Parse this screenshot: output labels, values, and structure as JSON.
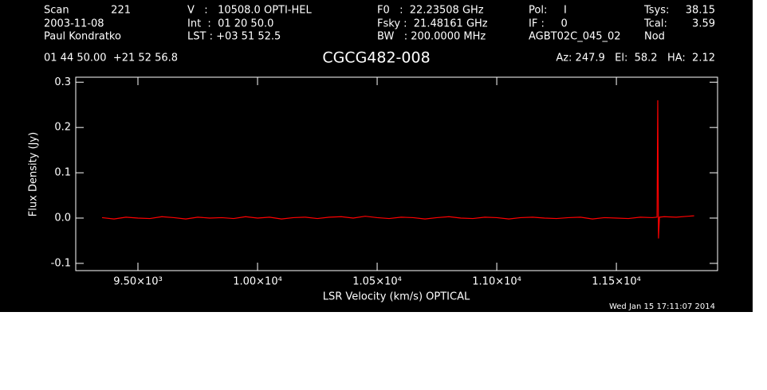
{
  "chart_data": {
    "type": "line",
    "title": "CGCG482-008",
    "header": [
      "Scan",
      "221",
      "2003-11-08",
      "Paul Kondratko",
      "V   :   10508.0 OPTI-HEL",
      "Int  :  01 20 50.0",
      "LST : +03 51 52.5",
      "F0   :  22.23508 GHz",
      "Fsky :  21.48161 GHz",
      "BW   : 200.0000 MHz",
      "Pol:     I",
      "IF :     0",
      "AGBT02C_045_02",
      "Tsys:",
      "38.15",
      "Tcal:",
      "3.59",
      "Nod",
      "01 44 50.00  +21 52 56.8",
      "Az: 247.9   El:  58.2   HA:  2.12"
    ],
    "xlabel": "LSR Velocity (km/s) OPTICAL",
    "ylabel": "Flux Density (Jy)",
    "timestamp": "Wed Jan 15 17:11:07 2014",
    "xlim": [
      9240,
      11923
    ],
    "ylim": [
      -0.116,
      0.311
    ],
    "xticks": [
      {
        "value": 9500,
        "label": "9.50×10³"
      },
      {
        "value": 10000,
        "label": "1.00×10⁴"
      },
      {
        "value": 10500,
        "label": "1.05×10⁴"
      },
      {
        "value": 11000,
        "label": "1.10×10⁴"
      },
      {
        "value": 11500,
        "label": "1.15×10⁴"
      }
    ],
    "yticks": [
      -0.1,
      {
        "value": 0,
        "label": "0.0"
      },
      0.1,
      0.2,
      0.3
    ],
    "series": [
      {
        "color": "#ff0000",
        "x": [
          9350,
          9400,
          9450,
          9500,
          9550,
          9600,
          9650,
          9700,
          9750,
          9800,
          9850,
          9900,
          9950,
          10000,
          10050,
          10100,
          10150,
          10200,
          10250,
          10300,
          10350,
          10400,
          10450,
          10500,
          10550,
          10600,
          10650,
          10700,
          10750,
          10800,
          10850,
          10900,
          10950,
          11000,
          11050,
          11100,
          11150,
          11200,
          11250,
          11300,
          11350,
          11400,
          11450,
          11500,
          11550,
          11600,
          11650,
          11670,
          11673,
          11676,
          11680,
          11700,
          11750,
          11800,
          11825
        ],
        "values": [
          0.001,
          -0.002,
          0.002,
          0.0,
          -0.001,
          0.003,
          0.001,
          -0.002,
          0.002,
          0.0,
          0.001,
          -0.001,
          0.003,
          0.0,
          0.002,
          -0.002,
          0.001,
          0.002,
          -0.001,
          0.002,
          0.003,
          0.0,
          0.004,
          0.001,
          -0.001,
          0.002,
          0.001,
          -0.002,
          0.001,
          0.003,
          0.0,
          -0.001,
          0.002,
          0.001,
          -0.002,
          0.001,
          0.002,
          0.0,
          -0.001,
          0.001,
          0.002,
          -0.002,
          0.001,
          0.0,
          -0.001,
          0.002,
          0.001,
          0.002,
          0.26,
          -0.045,
          0.002,
          0.003,
          0.002,
          0.004,
          0.005
        ]
      }
    ]
  }
}
